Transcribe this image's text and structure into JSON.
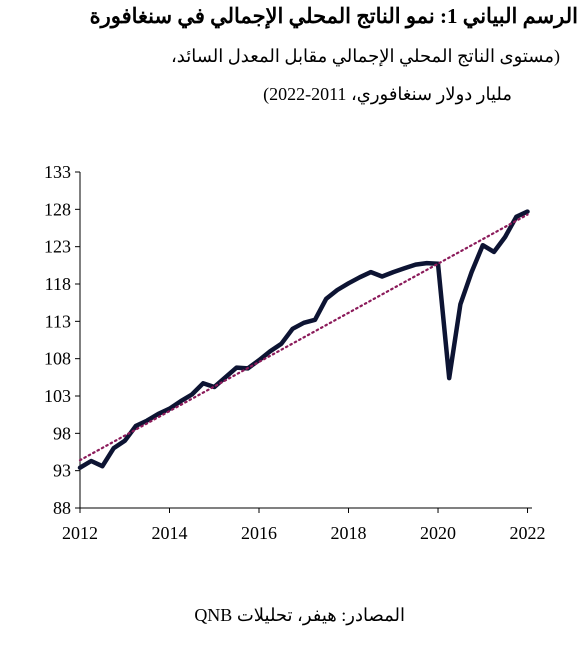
{
  "title": "الرسم البياني 1: نمو الناتج المحلي الإجمالي في سنغافورة",
  "subtitle_line1": "(مستوى الناتج المحلي الإجمالي مقابل المعدل السائد،",
  "subtitle_line2": "مليار دولار سنغافوري، 2011-2022)",
  "source": "المصادر: هيفر، تحليلات QNB",
  "colors": {
    "series": "#0d1433",
    "trend": "#8b1a5a",
    "axis": "#000000"
  },
  "chart_data": {
    "type": "line",
    "ylim": [
      88,
      133
    ],
    "xlim": [
      2012,
      2022.1
    ],
    "yticks": [
      "88",
      "93",
      "98",
      "103",
      "108",
      "113",
      "118",
      "123",
      "128",
      "133"
    ],
    "xticks": [
      "2012",
      "2014",
      "2016",
      "2018",
      "2020",
      "2022"
    ],
    "grid": false,
    "legend": "none",
    "series": [
      {
        "style": "solid",
        "x": [
          2012.0,
          2012.25,
          2012.5,
          2012.75,
          2013.0,
          2013.25,
          2013.5,
          2013.75,
          2014.0,
          2014.25,
          2014.5,
          2014.75,
          2015.0,
          2015.25,
          2015.5,
          2015.75,
          2016.0,
          2016.25,
          2016.5,
          2016.75,
          2017.0,
          2017.25,
          2017.5,
          2017.75,
          2018.0,
          2018.25,
          2018.5,
          2018.75,
          2019.0,
          2019.25,
          2019.5,
          2019.75,
          2020.0,
          2020.25,
          2020.5,
          2020.75,
          2021.0,
          2021.25,
          2021.5,
          2021.75,
          2022.0
        ],
        "y": [
          93.4,
          94.3,
          93.6,
          96.0,
          97.0,
          99.0,
          99.7,
          100.6,
          101.3,
          102.3,
          103.2,
          104.7,
          104.2,
          105.5,
          106.8,
          106.7,
          107.8,
          109.0,
          110.0,
          112.0,
          112.8,
          113.2,
          116.0,
          117.2,
          118.1,
          118.9,
          119.6,
          119.0,
          119.6,
          120.1,
          120.6,
          120.8,
          120.7,
          105.4,
          115.3,
          119.6,
          123.2,
          122.3,
          124.3,
          127.0,
          127.7
        ]
      },
      {
        "style": "dotted",
        "x": [
          2012.0,
          2022.0
        ],
        "y": [
          94.4,
          127.3
        ]
      }
    ]
  }
}
